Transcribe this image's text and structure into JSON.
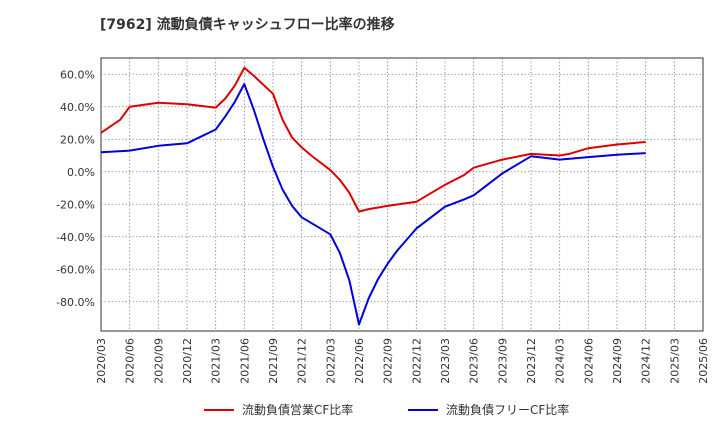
{
  "chart_data": {
    "type": "line",
    "title": "[7962]  流動負債キャッシュフロー比率の推移",
    "xlabel": "",
    "ylabel": "",
    "ylim": [
      -98,
      70
    ],
    "yticks": [
      60,
      40,
      20,
      0,
      -20,
      -40,
      -60,
      -80
    ],
    "ytick_labels": [
      "60.0%",
      "40.0%",
      "20.0%",
      "0.0%",
      "-20.0%",
      "-40.0%",
      "-60.0%",
      "-80.0%"
    ],
    "xticks": [
      "2020/03",
      "2020/06",
      "2020/09",
      "2020/12",
      "2021/03",
      "2021/06",
      "2021/09",
      "2021/12",
      "2022/03",
      "2022/06",
      "2022/09",
      "2022/12",
      "2023/03",
      "2023/06",
      "2023/09",
      "2023/12",
      "2024/03",
      "2024/06",
      "2024/09",
      "2024/12",
      "2025/03",
      "2025/06"
    ],
    "grid": true,
    "legend_position": "bottom",
    "series": [
      {
        "name": "流動負債営業CF比率",
        "color": "#dd0000",
        "points": [
          [
            "2020/03",
            24
          ],
          [
            "2020/05",
            32
          ],
          [
            "2020/06",
            40
          ],
          [
            "2020/09",
            42.5
          ],
          [
            "2020/12",
            41.5
          ],
          [
            "2021/03",
            39.5
          ],
          [
            "2021/04",
            45
          ],
          [
            "2021/05",
            53
          ],
          [
            "2021/06",
            64
          ],
          [
            "2021/07",
            59
          ],
          [
            "2021/09",
            48
          ],
          [
            "2021/10",
            32
          ],
          [
            "2021/11",
            21
          ],
          [
            "2021/12",
            15
          ],
          [
            "2022/01",
            10
          ],
          [
            "2022/03",
            1
          ],
          [
            "2022/04",
            -5
          ],
          [
            "2022/05",
            -13
          ],
          [
            "2022/06",
            -24.5
          ],
          [
            "2022/07",
            -23
          ],
          [
            "2022/09",
            -21
          ],
          [
            "2022/12",
            -18.5
          ],
          [
            "2023/03",
            -8
          ],
          [
            "2023/04",
            -5
          ],
          [
            "2023/05",
            -2
          ],
          [
            "2023/06",
            2.5
          ],
          [
            "2023/09",
            7.5
          ],
          [
            "2023/12",
            11
          ],
          [
            "2024/03",
            10
          ],
          [
            "2024/04",
            11
          ],
          [
            "2024/06",
            14.5
          ],
          [
            "2024/09",
            16.8
          ],
          [
            "2024/12",
            18.3
          ]
        ]
      },
      {
        "name": "流動負債フリーCF比率",
        "color": "#0000dd",
        "points": [
          [
            "2020/03",
            12
          ],
          [
            "2020/06",
            13
          ],
          [
            "2020/09",
            16
          ],
          [
            "2020/12",
            17.5
          ],
          [
            "2021/03",
            26
          ],
          [
            "2021/04",
            34
          ],
          [
            "2021/05",
            43
          ],
          [
            "2021/06",
            54
          ],
          [
            "2021/07",
            38
          ],
          [
            "2021/08",
            20
          ],
          [
            "2021/09",
            3
          ],
          [
            "2021/10",
            -11
          ],
          [
            "2021/11",
            -21
          ],
          [
            "2021/12",
            -28
          ],
          [
            "2022/03",
            -38.5
          ],
          [
            "2022/04",
            -50
          ],
          [
            "2022/05",
            -67
          ],
          [
            "2022/06",
            -94
          ],
          [
            "2022/07",
            -78
          ],
          [
            "2022/08",
            -66
          ],
          [
            "2022/09",
            -56.5
          ],
          [
            "2022/10",
            -48.5
          ],
          [
            "2022/12",
            -35
          ],
          [
            "2023/03",
            -21.5
          ],
          [
            "2023/05",
            -17
          ],
          [
            "2023/06",
            -14.5
          ],
          [
            "2023/09",
            -1
          ],
          [
            "2023/12",
            9.5
          ],
          [
            "2024/03",
            7.5
          ],
          [
            "2024/06",
            9
          ],
          [
            "2024/09",
            10.5
          ],
          [
            "2024/12",
            11.5
          ]
        ]
      }
    ]
  }
}
